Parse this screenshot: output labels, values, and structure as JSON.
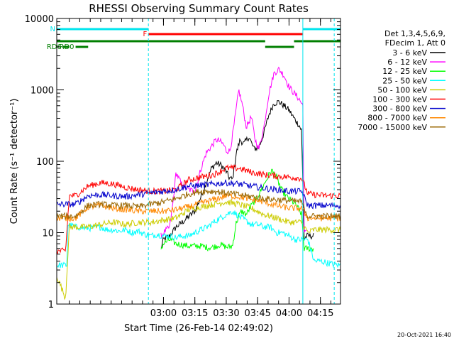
{
  "chart_data": {
    "type": "line",
    "title": "RHESSI Observing Summary Count Rates",
    "xlabel": "Start Time (26-Feb-14 02:49:02)",
    "ylabel": "Count Rate (s⁻¹ detector⁻¹)",
    "y_scale": "log",
    "ylim": [
      1,
      10000
    ],
    "x_range_minutes": [
      2.15,
      4.41
    ],
    "x_ticks": [
      {
        "value": 3.0,
        "label": "03:00"
      },
      {
        "value": 3.25,
        "label": "03:15"
      },
      {
        "value": 3.5,
        "label": "03:30"
      },
      {
        "value": 3.75,
        "label": "03:45"
      },
      {
        "value": 4.0,
        "label": "04:00"
      },
      {
        "value": 4.25,
        "label": "04:15"
      }
    ],
    "y_ticks": [
      {
        "value": 1,
        "label": "1"
      },
      {
        "value": 10,
        "label": "10"
      },
      {
        "value": 100,
        "label": "100"
      },
      {
        "value": 1000,
        "label": "1000"
      },
      {
        "value": 10000,
        "label": "10000"
      }
    ],
    "legend_header": [
      "Det 1,3,4,5,6,9,",
      "FDecim 1, Att 0"
    ],
    "legend_position": "right",
    "date_stamp": "20-Oct-2021 16:40",
    "series": [
      {
        "name": "3 - 6 keV",
        "color": "#000000",
        "x": [
          2.98,
          3.0,
          3.05,
          3.1,
          3.15,
          3.25,
          3.3,
          3.34,
          3.38,
          3.42,
          3.46,
          3.5,
          3.52,
          3.55,
          3.58,
          3.61,
          3.64,
          3.68,
          3.72,
          3.76,
          3.8,
          3.84,
          3.88,
          3.92,
          3.96,
          4.0,
          4.04,
          4.08,
          4.1,
          4.12,
          4.14,
          4.2
        ],
        "y": [
          6,
          8,
          9,
          12,
          14,
          20,
          32,
          50,
          78,
          95,
          88,
          72,
          60,
          55,
          130,
          200,
          175,
          220,
          150,
          155,
          250,
          450,
          650,
          680,
          600,
          520,
          400,
          320,
          270,
          8,
          9,
          9
        ]
      },
      {
        "name": "6 - 12 keV",
        "color": "#ff00ff",
        "x": [
          2.98,
          3.0,
          3.05,
          3.08,
          3.1,
          3.15,
          3.2,
          3.25,
          3.3,
          3.34,
          3.38,
          3.42,
          3.45,
          3.48,
          3.5,
          3.53,
          3.56,
          3.6,
          3.63,
          3.66,
          3.7,
          3.73,
          3.76,
          3.8,
          3.84,
          3.88,
          3.92,
          3.96,
          4.0,
          4.04,
          4.08,
          4.11,
          4.12,
          4.14
        ],
        "y": [
          9,
          10,
          12,
          30,
          70,
          45,
          40,
          38,
          80,
          130,
          160,
          200,
          190,
          170,
          140,
          140,
          300,
          1000,
          600,
          300,
          420,
          200,
          150,
          300,
          900,
          1700,
          1950,
          1600,
          1100,
          900,
          750,
          600,
          10,
          10
        ]
      },
      {
        "name": "12 - 25 keV",
        "color": "#00ff00",
        "x": [
          2.98,
          3.0,
          3.05,
          3.1,
          3.2,
          3.3,
          3.35,
          3.4,
          3.45,
          3.5,
          3.52,
          3.55,
          3.58,
          3.62,
          3.66,
          3.7,
          3.74,
          3.78,
          3.82,
          3.86,
          3.9,
          3.94,
          3.98,
          4.02,
          4.06,
          4.1,
          4.12,
          4.14,
          4.2
        ],
        "y": [
          6,
          7,
          8,
          7,
          6.5,
          6.5,
          6.2,
          6.3,
          6.8,
          6.3,
          6.3,
          6.5,
          14,
          20,
          18,
          24,
          30,
          40,
          55,
          75,
          60,
          40,
          32,
          28,
          24,
          18,
          6,
          6,
          6
        ]
      },
      {
        "name": "25 - 50 keV",
        "color": "#00ffff",
        "x": [
          2.15,
          2.23,
          2.24,
          2.3,
          2.4,
          2.5,
          2.55,
          2.6,
          2.65,
          2.7,
          2.75,
          2.8,
          2.85,
          2.9,
          2.95,
          3.0,
          3.05,
          3.1,
          3.15,
          3.2,
          3.25,
          3.3,
          3.35,
          3.4,
          3.45,
          3.5,
          3.55,
          3.6,
          3.65,
          3.7,
          3.75,
          3.8,
          3.85,
          3.9,
          3.95,
          4.0,
          4.05,
          4.1,
          4.15,
          4.2,
          4.25,
          4.3,
          4.35,
          4.41
        ],
        "y": [
          3.5,
          3.5,
          13,
          12,
          11.5,
          12,
          11,
          11,
          10.5,
          11,
          10,
          10.5,
          9.5,
          9,
          9.5,
          9,
          9,
          8.5,
          9,
          9,
          10,
          11,
          12,
          14,
          16,
          18,
          20,
          17,
          15,
          13,
          13,
          12,
          12,
          10,
          10,
          9,
          8,
          8,
          8,
          4,
          4,
          3.8,
          3.6,
          3.5
        ]
      },
      {
        "name": "50 - 100 keV",
        "color": "#cccc00",
        "x": [
          2.15,
          2.22,
          2.25,
          2.3,
          2.4,
          2.5,
          2.6,
          2.7,
          2.8,
          2.9,
          3.0,
          3.1,
          3.2,
          3.3,
          3.4,
          3.5,
          3.6,
          3.7,
          3.8,
          3.9,
          4.0,
          4.1,
          4.15,
          4.2,
          4.3,
          4.41
        ],
        "y": [
          2.5,
          1.2,
          12,
          12,
          12,
          13,
          14,
          13,
          14,
          14,
          15,
          16,
          21,
          23,
          25,
          27,
          25,
          22,
          18,
          16,
          14,
          14,
          10,
          11,
          11,
          11
        ]
      },
      {
        "name": "100 - 300 keV",
        "color": "#ff0000",
        "x": [
          2.15,
          2.22,
          2.25,
          2.3,
          2.4,
          2.5,
          2.6,
          2.7,
          2.8,
          2.9,
          3.0,
          3.1,
          3.2,
          3.3,
          3.4,
          3.5,
          3.6,
          3.7,
          3.8,
          3.9,
          4.0,
          4.1,
          4.15,
          4.2,
          4.3,
          4.41
        ],
        "y": [
          5.5,
          5.5,
          33,
          33,
          45,
          50,
          48,
          43,
          40,
          38,
          38,
          40,
          55,
          60,
          65,
          80,
          80,
          70,
          65,
          62,
          60,
          58,
          35,
          34,
          33,
          33
        ]
      },
      {
        "name": "300 - 800 keV",
        "color": "#0000cc",
        "x": [
          2.15,
          2.22,
          2.25,
          2.3,
          2.4,
          2.5,
          2.6,
          2.7,
          2.8,
          2.9,
          3.0,
          3.1,
          3.2,
          3.3,
          3.4,
          3.5,
          3.6,
          3.7,
          3.8,
          3.9,
          4.0,
          4.1,
          4.15,
          4.2,
          4.3,
          4.41
        ],
        "y": [
          25,
          25,
          25,
          25,
          33,
          34,
          33,
          32,
          34,
          36,
          38,
          40,
          45,
          46,
          48,
          50,
          48,
          45,
          42,
          40,
          38,
          38,
          24,
          24,
          24,
          24
        ]
      },
      {
        "name": "800 - 7000 keV",
        "color": "#ff8800",
        "x": [
          2.15,
          2.22,
          2.25,
          2.3,
          2.4,
          2.5,
          2.6,
          2.7,
          2.8,
          2.9,
          3.0,
          3.1,
          3.2,
          3.3,
          3.4,
          3.5,
          3.6,
          3.7,
          3.8,
          3.9,
          4.0,
          4.1,
          4.15,
          4.2,
          4.3,
          4.41
        ],
        "y": [
          16,
          16,
          16,
          16,
          23,
          24,
          22,
          21,
          20,
          20,
          20,
          21,
          23,
          26,
          29,
          33,
          32,
          29,
          27,
          24,
          22,
          22,
          16,
          16,
          16,
          16
        ]
      },
      {
        "name": "7000 - 15000 keV",
        "color": "#996600",
        "x": [
          2.15,
          2.22,
          2.25,
          2.3,
          2.4,
          2.5,
          2.6,
          2.7,
          2.8,
          2.9,
          3.0,
          3.1,
          3.2,
          3.3,
          3.4,
          3.5,
          3.6,
          3.7,
          3.8,
          3.9,
          4.0,
          4.1,
          4.15,
          4.2,
          4.3,
          4.41
        ],
        "y": [
          17,
          17,
          17,
          17,
          24,
          25,
          24,
          24,
          23,
          25,
          27,
          30,
          35,
          38,
          38,
          36,
          34,
          32,
          30,
          29,
          28,
          27,
          17,
          17,
          17,
          17
        ]
      }
    ],
    "markers": {
      "cyan_bars": [
        {
          "label": "N",
          "x_start": 2.15,
          "x_end": 2.88,
          "level": 1
        },
        {
          "label": "",
          "x_start": 4.11,
          "x_end": 4.41,
          "level": 1
        }
      ],
      "red_bars": [
        {
          "label": "F",
          "x_start": 2.88,
          "x_end": 4.11,
          "level": 2
        }
      ],
      "green_bars": [
        {
          "label": "",
          "x_start": 2.15,
          "x_end": 3.81,
          "level": 3
        },
        {
          "label": "",
          "x_start": 4.04,
          "x_end": 4.41,
          "level": 3
        },
        {
          "label": "RD0",
          "x_start": 2.3,
          "x_end": 2.4,
          "level": 4
        },
        {
          "label": "RD6",
          "x_start": 2.2,
          "x_end": 2.25,
          "level": 4
        },
        {
          "label": "",
          "x_start": 3.81,
          "x_end": 4.04,
          "level": 4
        }
      ],
      "vertical_lines": [
        {
          "x": 2.15,
          "style": "solid"
        },
        {
          "x": 2.88,
          "style": "dashed"
        },
        {
          "x": 4.11,
          "style": "solid"
        },
        {
          "x": 4.36,
          "style": "dashed"
        }
      ]
    }
  }
}
